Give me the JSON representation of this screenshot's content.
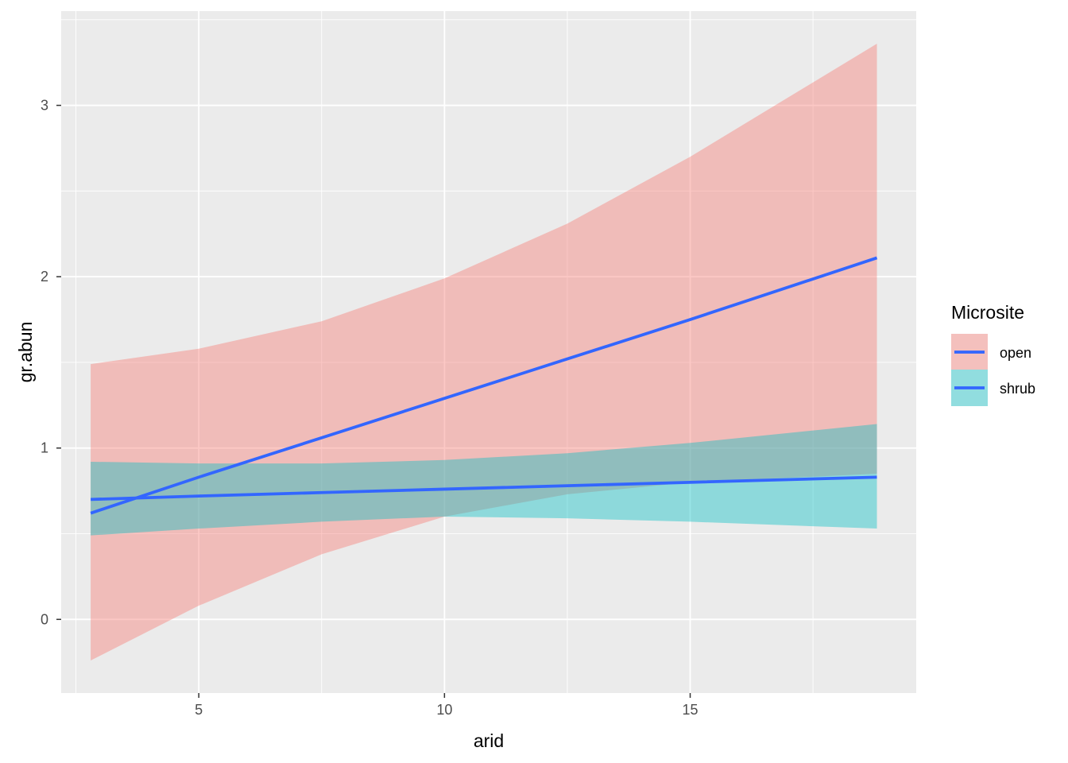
{
  "chart_data": {
    "type": "line",
    "xlabel": "arid",
    "ylabel": "gr.abun",
    "xlim": [
      2.2,
      19.6
    ],
    "ylim": [
      -0.43,
      3.55
    ],
    "x_ticks": [
      5,
      10,
      15
    ],
    "y_ticks": [
      0,
      1,
      2,
      3
    ],
    "grid": true,
    "legend": {
      "title": "Microsite",
      "placement": "right",
      "entries": [
        "open",
        "shrub"
      ]
    },
    "colors": {
      "panel": "#EBEBEB",
      "grid": "#FFFFFF",
      "line": "#3366FF",
      "open_ribbon": "#F8766D",
      "shrub_ribbon": "#00BFC4"
    },
    "series": [
      {
        "name": "open",
        "x": [
          2.8,
          5,
          7.5,
          10,
          12.5,
          15,
          18.8
        ],
        "y": [
          0.62,
          0.83,
          1.06,
          1.29,
          1.52,
          1.75,
          2.11
        ],
        "lower": [
          -0.24,
          0.08,
          0.38,
          0.6,
          0.73,
          0.8,
          0.85
        ],
        "upper": [
          1.49,
          1.58,
          1.74,
          1.99,
          2.31,
          2.7,
          3.36
        ]
      },
      {
        "name": "shrub",
        "x": [
          2.8,
          5,
          7.5,
          10,
          12.5,
          15,
          18.8
        ],
        "y": [
          0.7,
          0.72,
          0.74,
          0.76,
          0.78,
          0.8,
          0.83
        ],
        "lower": [
          0.49,
          0.53,
          0.57,
          0.6,
          0.59,
          0.57,
          0.53
        ],
        "upper": [
          0.92,
          0.91,
          0.91,
          0.93,
          0.97,
          1.03,
          1.14
        ]
      }
    ]
  }
}
